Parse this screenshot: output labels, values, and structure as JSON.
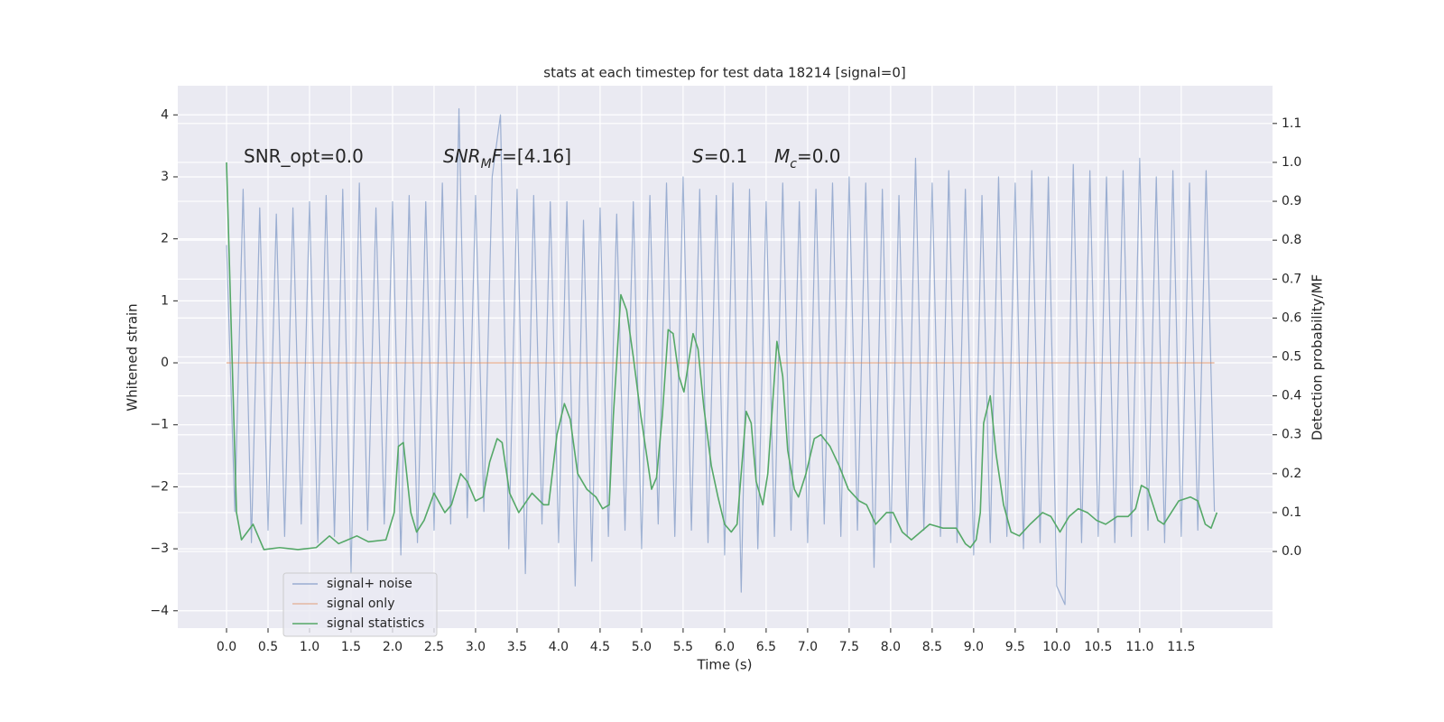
{
  "chart_data": {
    "type": "line",
    "title": "stats at each timestep for test data 18214 [signal=0]",
    "xlabel": "Time (s)",
    "ylabel": "Whitened strain",
    "y2label": "Detection probability/MF",
    "grid": true,
    "legend": "lower left",
    "xlim": [
      -0.587,
      12.6
    ],
    "ylim": [
      -4.28,
      4.47
    ],
    "y2lim": [
      -0.197,
      1.197
    ],
    "xticks": [
      {
        "value": 0,
        "label": "0.0"
      },
      {
        "value": 0.5,
        "label": "0.5"
      },
      {
        "value": 1,
        "label": "1.0"
      },
      {
        "value": 1.5,
        "label": "1.5"
      },
      {
        "value": 2,
        "label": "2.0"
      },
      {
        "value": 2.5,
        "label": "2.5"
      },
      {
        "value": 3,
        "label": "3.0"
      },
      {
        "value": 3.5,
        "label": "3.5"
      },
      {
        "value": 4,
        "label": "4.0"
      },
      {
        "value": 4.5,
        "label": "4.5"
      },
      {
        "value": 5,
        "label": "5.0"
      },
      {
        "value": 5.5,
        "label": "5.5"
      },
      {
        "value": 6,
        "label": "6.0"
      },
      {
        "value": 6.5,
        "label": "6.5"
      },
      {
        "value": 7,
        "label": "7.0"
      },
      {
        "value": 7.5,
        "label": "7.5"
      },
      {
        "value": 8,
        "label": "8.0"
      },
      {
        "value": 8.5,
        "label": "8.5"
      },
      {
        "value": 9,
        "label": "9.0"
      },
      {
        "value": 9.5,
        "label": "9.5"
      },
      {
        "value": 10,
        "label": "10.0"
      },
      {
        "value": 10.5,
        "label": "10.5"
      },
      {
        "value": 11,
        "label": "11.0"
      },
      {
        "value": 11.5,
        "label": "11.5"
      }
    ],
    "yticks": [
      {
        "value": -4,
        "label": "−4"
      },
      {
        "value": -3,
        "label": "−3"
      },
      {
        "value": -2,
        "label": "−2"
      },
      {
        "value": -1,
        "label": "−1"
      },
      0,
      1,
      2,
      3,
      4
    ],
    "y2ticks": [
      {
        "value": 0,
        "label": "0.0"
      },
      0.1,
      0.2,
      0.3,
      0.4,
      0.5,
      0.6,
      0.7,
      0.8,
      0.9,
      {
        "value": 1,
        "label": "1.0"
      },
      1.1
    ],
    "annotations": [
      {
        "parts": [
          {
            "text": "SNR_opt=0.0",
            "italic": false,
            "sub": false
          }
        ]
      },
      {
        "parts": [
          {
            "text": "SNR",
            "italic": true,
            "sub": false
          },
          {
            "text": "M",
            "italic": true,
            "sub": true
          },
          {
            "text": "F",
            "italic": true,
            "sub": false
          },
          {
            "text": "=[4.16]",
            "italic": false,
            "sub": false
          }
        ]
      },
      {
        "parts": [
          {
            "text": "S",
            "italic": true,
            "sub": false
          },
          {
            "text": "=0.1",
            "italic": false,
            "sub": false
          }
        ]
      },
      {
        "parts": [
          {
            "text": "M",
            "italic": true,
            "sub": false
          },
          {
            "text": "c",
            "italic": true,
            "sub": true
          },
          {
            "text": "=0.0",
            "italic": false,
            "sub": false
          }
        ]
      }
    ],
    "series": [
      {
        "name": "signal+ noise",
        "color": "#4c72b0",
        "alpha": 0.5,
        "axis": "y",
        "x": [
          0,
          0.1,
          0.2,
          0.3,
          0.4,
          0.5,
          0.6,
          0.7,
          0.8,
          0.9,
          1,
          1.1,
          1.2,
          1.3,
          1.4,
          1.5,
          1.6,
          1.7,
          1.8,
          1.9,
          2,
          2.1,
          2.2,
          2.3,
          2.4,
          2.5,
          2.6,
          2.7,
          2.8,
          2.9,
          3,
          3.1,
          3.2,
          3.3,
          3.4,
          3.5,
          3.6,
          3.7,
          3.8,
          3.9,
          4,
          4.1,
          4.2,
          4.3,
          4.4,
          4.5,
          4.6,
          4.7,
          4.8,
          4.9,
          5,
          5.1,
          5.2,
          5.3,
          5.4,
          5.5,
          5.6,
          5.7,
          5.8,
          5.9,
          6,
          6.1,
          6.2,
          6.3,
          6.4,
          6.5,
          6.6,
          6.7,
          6.8,
          6.9,
          7,
          7.1,
          7.2,
          7.3,
          7.4,
          7.5,
          7.6,
          7.7,
          7.8,
          7.9,
          8,
          8.1,
          8.2,
          8.3,
          8.4,
          8.5,
          8.6,
          8.7,
          8.8,
          8.9,
          9,
          9.1,
          9.2,
          9.3,
          9.4,
          9.5,
          9.6,
          9.7,
          9.8,
          9.9,
          10,
          10.1,
          10.2,
          10.3,
          10.4,
          10.5,
          10.6,
          10.7,
          10.8,
          10.9,
          11,
          11.1,
          11.2,
          11.3,
          11.4,
          11.5,
          11.6,
          11.7,
          11.8,
          11.9
        ],
        "values": [
          1.9,
          -2.4,
          2.8,
          -2.9,
          2.5,
          -2.7,
          2.4,
          -2.8,
          2.5,
          -2.6,
          2.6,
          -2.9,
          2.7,
          -2.8,
          2.8,
          -3.4,
          2.9,
          -2.7,
          2.5,
          -2.6,
          2.6,
          -3.1,
          2.7,
          -2.9,
          2.6,
          -2.7,
          2.9,
          -2.6,
          4.1,
          -2.5,
          2.7,
          -2.4,
          3.0,
          4.0,
          -3.0,
          2.8,
          -3.4,
          2.7,
          -2.6,
          2.6,
          -2.9,
          2.6,
          -3.6,
          2.3,
          -3.2,
          2.5,
          -2.8,
          2.4,
          -2.7,
          2.6,
          -3.0,
          2.7,
          -2.6,
          2.9,
          -2.8,
          3.0,
          -2.7,
          2.8,
          -2.9,
          2.7,
          -3.1,
          2.9,
          -3.7,
          2.8,
          -3.0,
          2.6,
          -2.8,
          2.9,
          -2.7,
          2.6,
          -2.9,
          2.8,
          -2.6,
          2.9,
          -2.8,
          3.0,
          -2.7,
          2.9,
          -3.3,
          2.8,
          -2.9,
          2.7,
          -2.8,
          3.3,
          -2.7,
          2.9,
          -2.8,
          3.1,
          -2.9,
          2.8,
          -3.1,
          2.7,
          -2.9,
          3.0,
          -2.8,
          2.9,
          -3.0,
          3.1,
          -2.9,
          3.0,
          -3.6,
          -3.9,
          3.2,
          -2.9,
          3.1,
          -2.8,
          3.0,
          -2.9,
          3.1,
          -2.8,
          3.3,
          -2.7,
          3.0,
          -2.9,
          3.1,
          -2.8,
          2.9,
          -2.7,
          3.1,
          -2.4
        ]
      },
      {
        "name": "signal only",
        "color": "#dd8452",
        "alpha": 0.5,
        "axis": "y",
        "x": [
          0,
          11.9
        ],
        "values": [
          0,
          0
        ]
      },
      {
        "name": "signal statistics",
        "color": "#55a868",
        "alpha": 1,
        "axis": "y2",
        "x": [
          0.0,
          0.12,
          0.18,
          0.32,
          0.45,
          0.64,
          0.86,
          1.08,
          1.24,
          1.35,
          1.57,
          1.71,
          1.92,
          2.02,
          2.07,
          2.13,
          2.22,
          2.29,
          2.38,
          2.5,
          2.63,
          2.71,
          2.82,
          2.9,
          3.0,
          3.09,
          3.17,
          3.26,
          3.32,
          3.41,
          3.52,
          3.68,
          3.82,
          3.88,
          3.98,
          4.07,
          4.14,
          4.23,
          4.34,
          4.45,
          4.53,
          4.61,
          4.66,
          4.75,
          4.82,
          4.9,
          4.99,
          5.08,
          5.12,
          5.18,
          5.25,
          5.32,
          5.38,
          5.45,
          5.51,
          5.62,
          5.68,
          5.75,
          5.84,
          5.92,
          6.0,
          6.08,
          6.15,
          6.26,
          6.32,
          6.38,
          6.46,
          6.52,
          6.63,
          6.7,
          6.76,
          6.84,
          6.89,
          6.98,
          7.08,
          7.16,
          7.27,
          7.38,
          7.49,
          7.62,
          7.71,
          7.82,
          7.95,
          8.03,
          8.14,
          8.25,
          8.36,
          8.47,
          8.63,
          8.79,
          8.9,
          8.96,
          9.03,
          9.08,
          9.12,
          9.2,
          9.27,
          9.36,
          9.45,
          9.55,
          9.68,
          9.83,
          9.93,
          10.04,
          10.15,
          10.26,
          10.37,
          10.48,
          10.59,
          10.73,
          10.86,
          10.95,
          11.02,
          11.1,
          11.22,
          11.29,
          11.38,
          11.47,
          11.61,
          11.7,
          11.79,
          11.86,
          11.93
        ],
        "values": [
          1.0,
          0.1,
          0.03,
          0.07,
          0.005,
          0.01,
          0.005,
          0.01,
          0.04,
          0.02,
          0.04,
          0.025,
          0.03,
          0.1,
          0.27,
          0.28,
          0.1,
          0.05,
          0.08,
          0.15,
          0.1,
          0.12,
          0.2,
          0.18,
          0.13,
          0.14,
          0.23,
          0.29,
          0.28,
          0.15,
          0.1,
          0.15,
          0.12,
          0.12,
          0.3,
          0.38,
          0.34,
          0.2,
          0.16,
          0.14,
          0.11,
          0.12,
          0.35,
          0.66,
          0.62,
          0.5,
          0.35,
          0.22,
          0.16,
          0.19,
          0.35,
          0.57,
          0.56,
          0.45,
          0.41,
          0.56,
          0.52,
          0.37,
          0.22,
          0.14,
          0.07,
          0.05,
          0.07,
          0.36,
          0.33,
          0.18,
          0.12,
          0.2,
          0.54,
          0.45,
          0.26,
          0.16,
          0.14,
          0.2,
          0.29,
          0.3,
          0.27,
          0.22,
          0.16,
          0.13,
          0.12,
          0.07,
          0.1,
          0.1,
          0.05,
          0.03,
          0.05,
          0.07,
          0.06,
          0.06,
          0.02,
          0.01,
          0.03,
          0.1,
          0.33,
          0.4,
          0.25,
          0.12,
          0.05,
          0.04,
          0.07,
          0.1,
          0.09,
          0.05,
          0.09,
          0.11,
          0.1,
          0.08,
          0.07,
          0.09,
          0.09,
          0.11,
          0.17,
          0.16,
          0.08,
          0.07,
          0.1,
          0.13,
          0.14,
          0.13,
          0.07,
          0.06,
          0.1
        ]
      }
    ]
  }
}
